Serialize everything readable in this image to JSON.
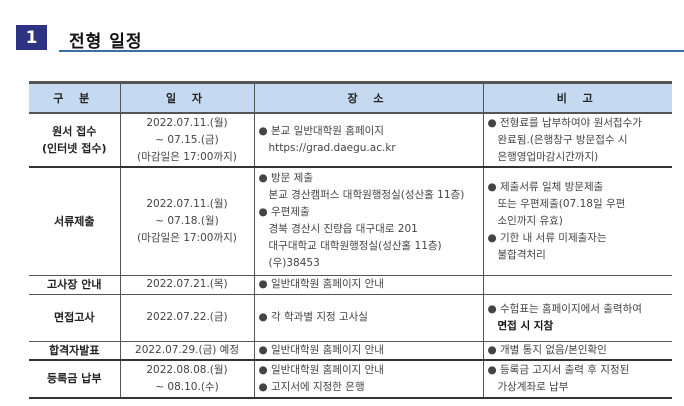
{
  "section": {
    "number": "1",
    "title": "전형 일정",
    "accent": "#2e3282",
    "underline_color": "#3a6ea5"
  },
  "table": {
    "headers": [
      "구 분",
      "일 자",
      "장 소",
      "비 고"
    ],
    "header_bg": "#c5d9f1",
    "rows": [
      {
        "category": [
          "원서 접수",
          "(인터넷 접수)"
        ],
        "date": [
          "2022.07.11.(월)",
          "~ 07.15.(금)",
          "(마감일은 17:00까지)"
        ],
        "place": [
          "● 본교 일반대학원 홈페이지",
          "https://grad.daegu.ac.kr"
        ],
        "note": [
          "● 전형료를 납부하여야 원서접수가",
          "완료됨.(은행창구 방문접수 시",
          "은행영업마감시간까지)"
        ]
      },
      {
        "category": [
          "서류제출"
        ],
        "date": [
          "2022.07.11.(월)",
          "~ 07.18.(월)",
          "(마감일은 17:00까지)"
        ],
        "place": [
          "● 방문 제출",
          "본교 경산캠퍼스 대학원행정실(성산홀 11층)",
          "● 우편제출",
          "경북 경산시 진량읍 대구대로 201",
          "대구대학교 대학원행정실(성산홀 11층)",
          "(우)38453"
        ],
        "note": [
          "● 제출서류 일체 방문제출",
          "또는 우편제출(07.18일 우편",
          "소인까지 유효)",
          "● 기한 내 서류 미제출자는",
          "불합격처리"
        ]
      },
      {
        "category": [
          "고사장 안내"
        ],
        "date": [
          "2022.07.21.(목)"
        ],
        "place": [
          "● 일반대학원 홈페이지 안내"
        ],
        "note": []
      },
      {
        "category": [
          "면접고사"
        ],
        "date": [
          "2022.07.22.(금)"
        ],
        "place": [
          "● 각 학과별 지정 고사실"
        ],
        "note": [
          "● 수험표는 홈페이지에서 출력하여",
          "면접 시 지참"
        ]
      },
      {
        "category": [
          "합격자발표"
        ],
        "date": [
          "2022.07.29.(금) 예정"
        ],
        "place": [
          "● 일반대학원 홈페이지 안내"
        ],
        "note": [
          "● 개별 통지 없음/본인확인"
        ]
      },
      {
        "category": [
          "등록금 납부"
        ],
        "date": [
          "2022.08.08.(월)",
          "~ 08.10.(수)"
        ],
        "place": [
          "● 일반대학원 홈페이지 안내",
          "● 고지서에 지정한 은행"
        ],
        "note": [
          "● 등록금 고지서 출력 후 지정된",
          "가상계좌로 납부"
        ]
      }
    ]
  }
}
